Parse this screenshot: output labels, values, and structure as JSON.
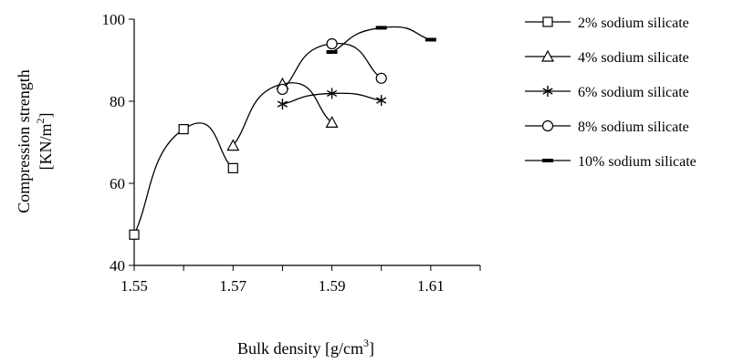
{
  "chart_data": {
    "type": "line",
    "title": "",
    "ylabel_line1": "Compression strength",
    "ylabel_line2_base": "[KN/m",
    "ylabel_line2_sup": "2",
    "ylabel_line2_end": "]",
    "xlabel_base": "Bulk density [g/cm",
    "xlabel_sup": "3",
    "xlabel_end": "]",
    "xlim": [
      1.55,
      1.62
    ],
    "ylim": [
      40,
      100
    ],
    "x_ticks": [
      "1.55",
      "1.57",
      "1.59",
      "1.61"
    ],
    "y_ticks": [
      "40",
      "60",
      "80",
      "100"
    ],
    "grid": false,
    "legend_position": "right",
    "series": [
      {
        "name": "2% sodium silicate",
        "marker": "square",
        "x": [
          1.55,
          1.56,
          1.57
        ],
        "y": [
          47.5,
          73.2,
          63.7
        ]
      },
      {
        "name": "4% sodium silicate",
        "marker": "triangle",
        "x": [
          1.57,
          1.58,
          1.59
        ],
        "y": [
          69.2,
          84.2,
          74.8
        ]
      },
      {
        "name": "6% sodium silicate",
        "marker": "asterisk",
        "x": [
          1.58,
          1.59,
          1.6
        ],
        "y": [
          79.3,
          81.9,
          80.2
        ]
      },
      {
        "name": "8% sodium silicate",
        "marker": "circle",
        "x": [
          1.58,
          1.59,
          1.6
        ],
        "y": [
          82.9,
          94.0,
          85.6
        ]
      },
      {
        "name": "10% sodium silicate",
        "marker": "dash",
        "x": [
          1.59,
          1.6,
          1.61
        ],
        "y": [
          92.0,
          97.9,
          95.0
        ]
      }
    ]
  }
}
